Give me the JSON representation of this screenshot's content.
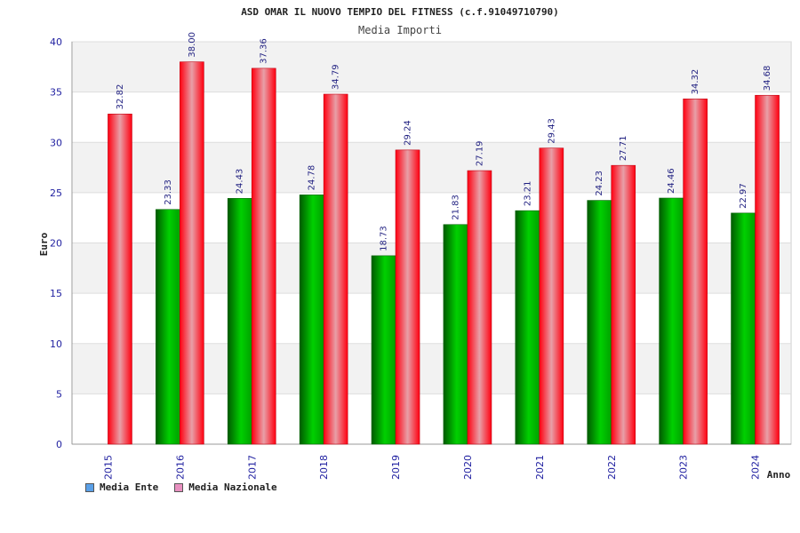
{
  "title": "ASD OMAR IL NUOVO TEMPIO DEL FITNESS (c.f.91049710790)",
  "subtitle": "Media Importi",
  "colors": {
    "ente": "#00a000",
    "nazionale": "#e00020",
    "legend_ente": "#5aa0e8",
    "legend_nazionale": "#e890c0",
    "band": "#f2f2f2",
    "text_blue": "#1f1fa0"
  },
  "chart_data": {
    "type": "bar",
    "title": "ASD OMAR IL NUOVO TEMPIO DEL FITNESS (c.f.91049710790)",
    "subtitle": "Media Importi",
    "xlabel": "Anno",
    "ylabel": "Euro",
    "ylim": [
      0,
      40
    ],
    "yticks": [
      0,
      5,
      10,
      15,
      20,
      25,
      30,
      35,
      40
    ],
    "categories": [
      "2015",
      "2016",
      "2017",
      "2018",
      "2019",
      "2020",
      "2021",
      "2022",
      "2023",
      "2024"
    ],
    "series": [
      {
        "name": "Media Ente",
        "values": [
          null,
          23.33,
          24.43,
          24.78,
          18.73,
          21.83,
          23.21,
          24.23,
          24.46,
          22.97
        ]
      },
      {
        "name": "Media Nazionale",
        "values": [
          32.82,
          38.0,
          37.36,
          34.79,
          29.24,
          27.19,
          29.43,
          27.71,
          34.32,
          34.68
        ]
      }
    ],
    "data_labels": [
      [
        null,
        "23.33",
        "24.43",
        "24.78",
        "18.73",
        "21.83",
        "23.21",
        "24.23",
        "24.46",
        "22.97"
      ],
      [
        "32.82",
        "38.00",
        "37.36",
        "34.79",
        "29.24",
        "27.19",
        "29.43",
        "27.71",
        "34.32",
        "34.68"
      ]
    ],
    "legend_position": "bottom-left",
    "grid": "alternating horizontal bands"
  },
  "legend": {
    "ente_label": "Media Ente",
    "nazionale_label": "Media Nazionale"
  }
}
